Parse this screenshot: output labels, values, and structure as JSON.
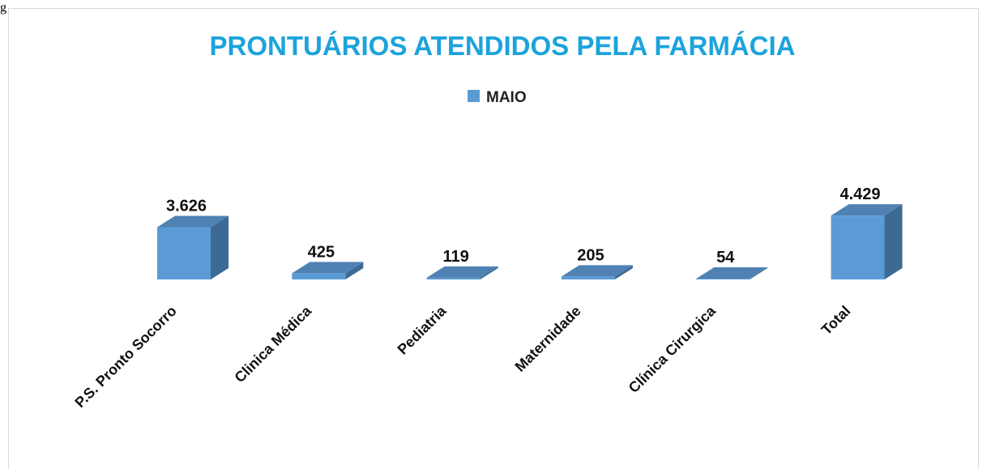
{
  "fragment": "g",
  "chart_data": {
    "type": "bar3d",
    "title": "PRONTUÁRIOS ATENDIDOS PELA FARMÁCIA",
    "categories": [
      "P.S. Pronto Socorro",
      "Clinica Médica",
      "Pediatria",
      "Maternidade",
      "Clínica Cirurgica",
      "Total"
    ],
    "series": [
      {
        "name": "MAIO",
        "color": "#5b9bd5",
        "values": [
          3626,
          425,
          119,
          205,
          54,
          4429
        ],
        "value_labels": [
          "3.626",
          "425",
          "119",
          "205",
          "54",
          "4.429"
        ]
      }
    ],
    "ylim": [
      0,
      10000
    ],
    "legend": "top"
  }
}
